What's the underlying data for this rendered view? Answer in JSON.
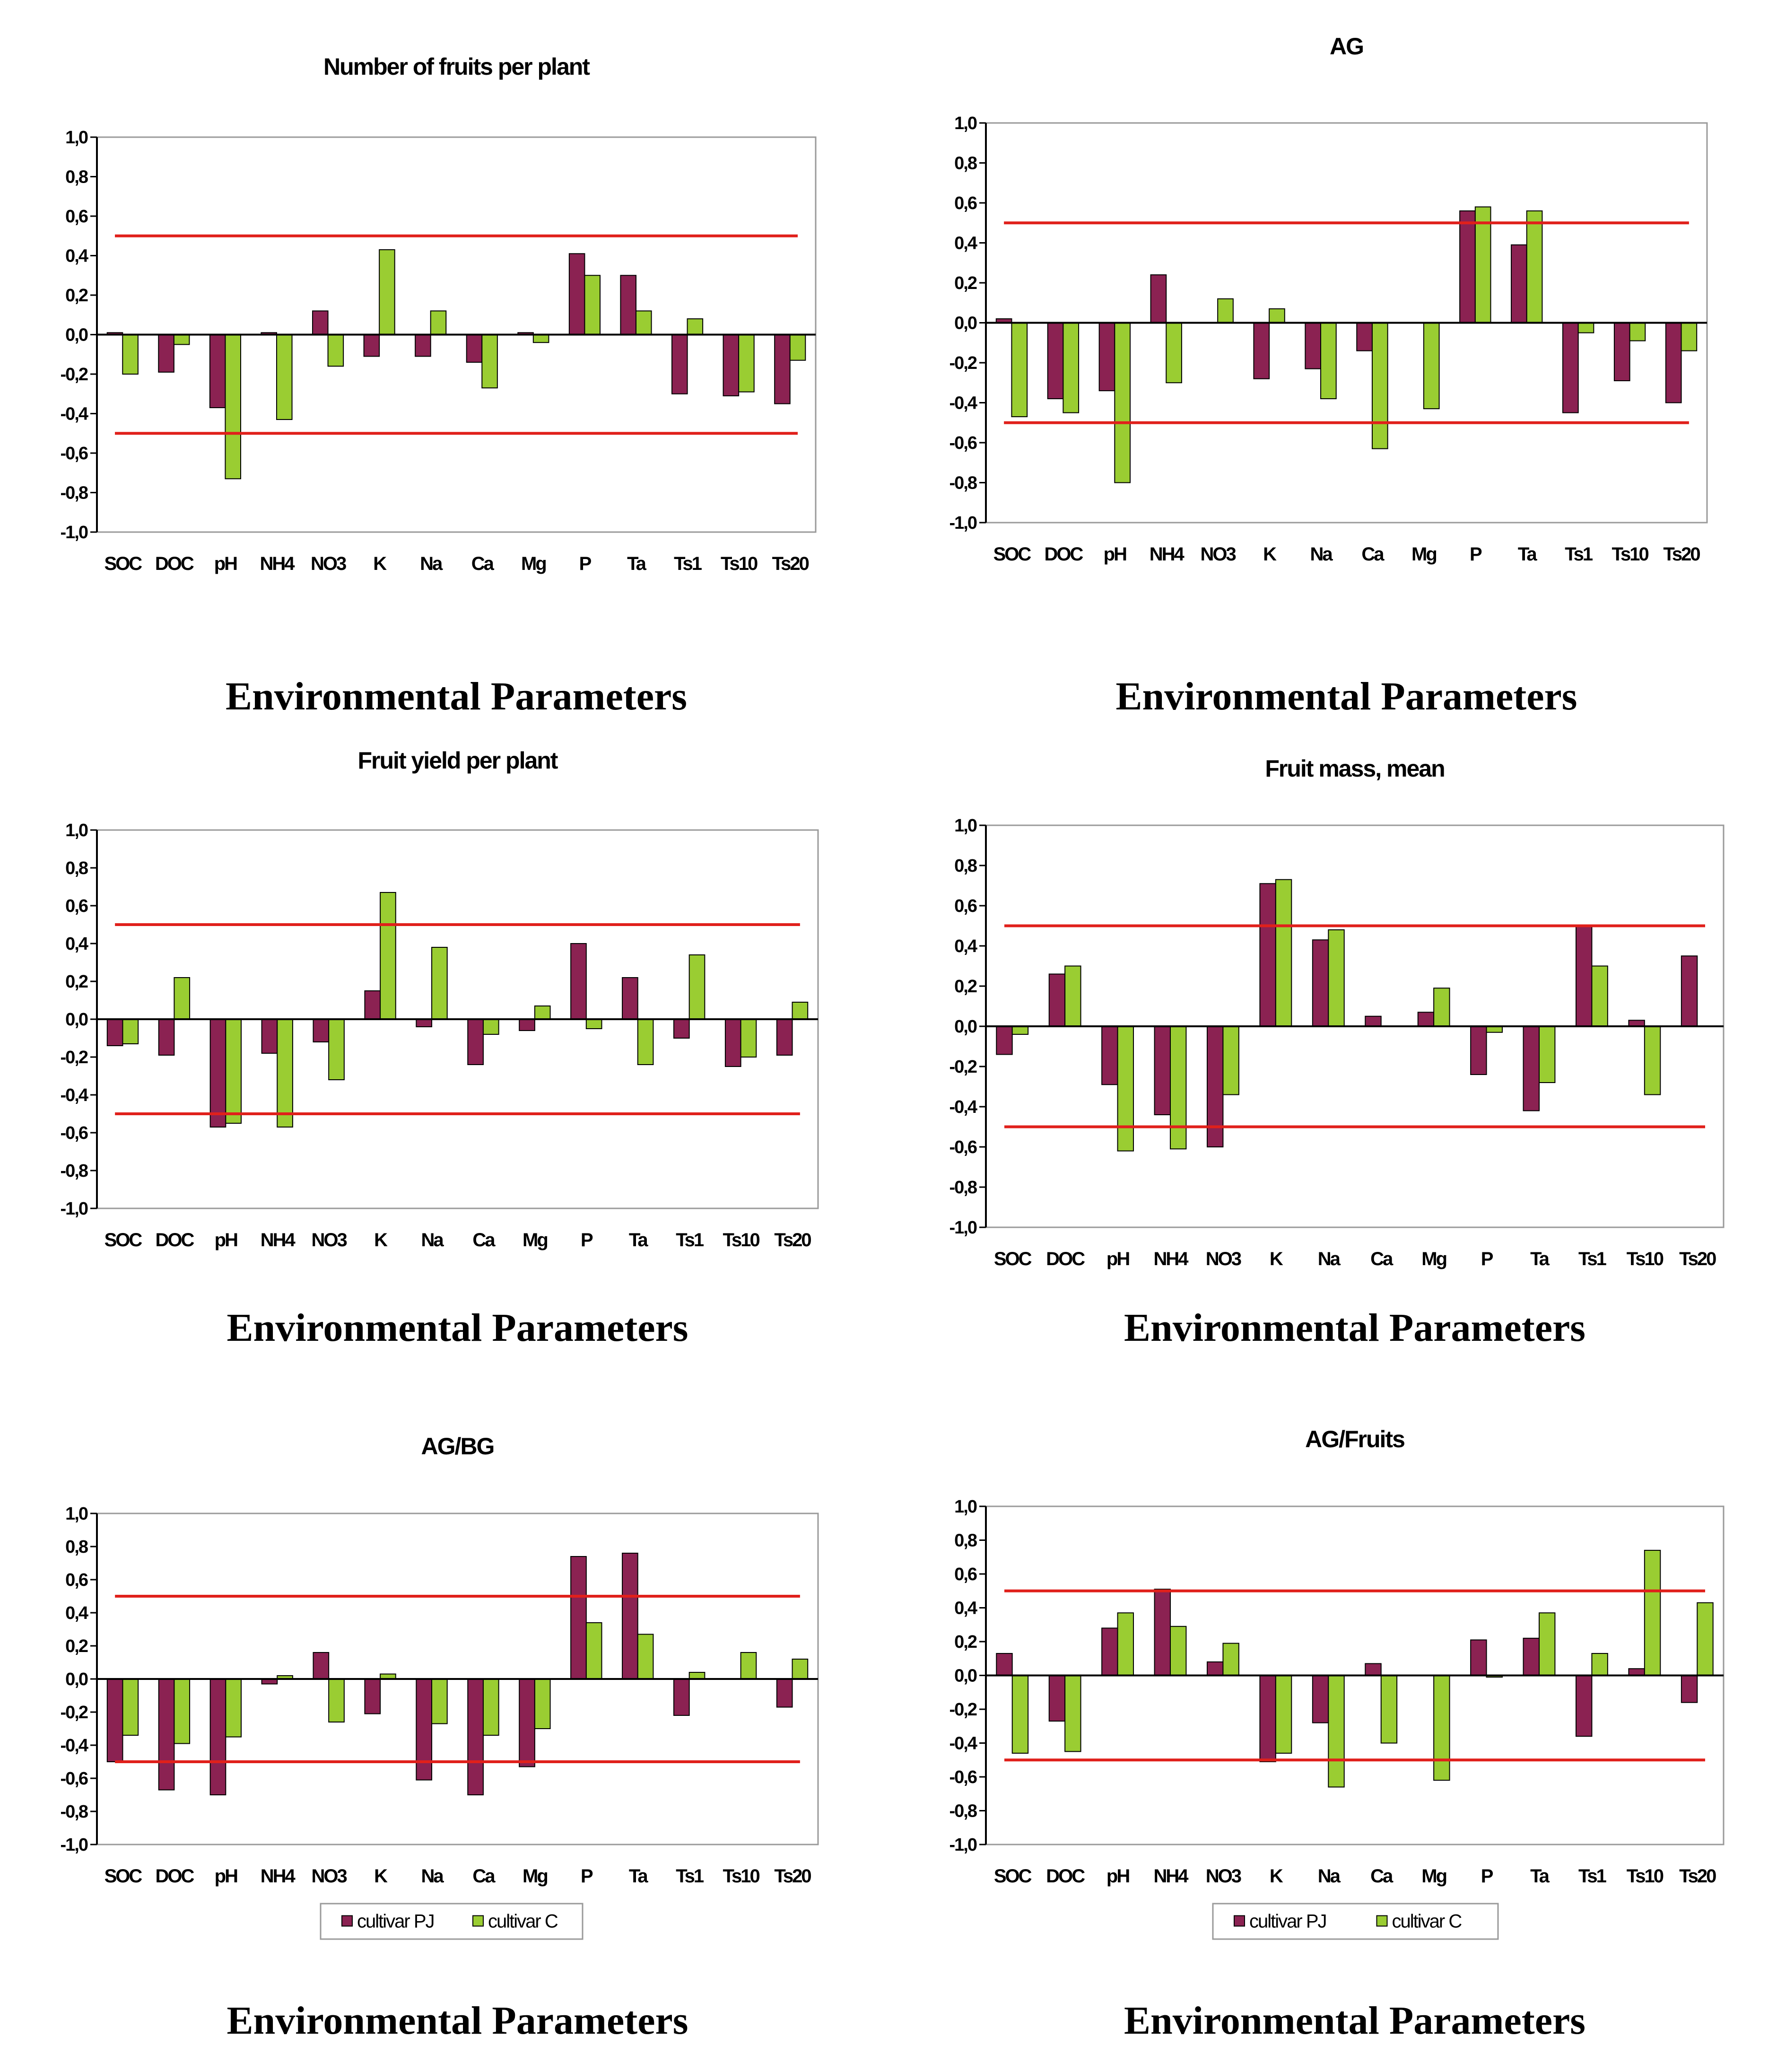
{
  "colors": {
    "cultivar_pj": "#8B2252",
    "cultivar_c": "#9ACD32",
    "threshold": "#E0201B",
    "frame": "#9a9a9a"
  },
  "x_axis_caption": "Environmental Parameters",
  "chart_data": [
    {
      "type": "bar",
      "title": "Number of fruits per plant",
      "xlabel": "Environmental Parameters",
      "ylabel": "",
      "ylim": [
        -1.0,
        1.0
      ],
      "yticks": [
        "1,0",
        "0,8",
        "0,6",
        "0,4",
        "0,2",
        "0,0",
        "-0,2",
        "-0,4",
        "-0,6",
        "-0,8",
        "-1,0"
      ],
      "thresholds": [
        0.5,
        -0.5
      ],
      "categories": [
        "SOC",
        "DOC",
        "pH",
        "NH4",
        "NO3",
        "K",
        "Na",
        "Ca",
        "Mg",
        "P",
        "Ta",
        "Ts1",
        "Ts10",
        "Ts20"
      ],
      "series": [
        {
          "name": "cultivar PJ",
          "values": [
            0.01,
            -0.19,
            -0.37,
            0.01,
            0.12,
            -0.11,
            -0.11,
            -0.14,
            0.01,
            0.41,
            0.3,
            -0.3,
            -0.31,
            -0.35
          ]
        },
        {
          "name": "cultivar C",
          "values": [
            -0.2,
            -0.05,
            -0.73,
            -0.43,
            -0.16,
            0.43,
            0.12,
            -0.27,
            -0.04,
            0.3,
            0.12,
            0.08,
            -0.29,
            -0.13
          ]
        }
      ],
      "legend": null
    },
    {
      "type": "bar",
      "title": "AG",
      "xlabel": "Environmental Parameters",
      "ylabel": "",
      "ylim": [
        -1.0,
        1.0
      ],
      "yticks": [
        "1,0",
        "0,8",
        "0,6",
        "0,4",
        "0,2",
        "0,0",
        "-0,2",
        "-0,4",
        "-0,6",
        "-0,8",
        "-1,0"
      ],
      "thresholds": [
        0.5,
        -0.5
      ],
      "categories": [
        "SOC",
        "DOC",
        "pH",
        "NH4",
        "NO3",
        "K",
        "Na",
        "Ca",
        "Mg",
        "P",
        "Ta",
        "Ts1",
        "Ts10",
        "Ts20"
      ],
      "series": [
        {
          "name": "cultivar PJ",
          "values": [
            0.02,
            -0.38,
            -0.34,
            0.24,
            0.0,
            -0.28,
            -0.23,
            -0.14,
            0.0,
            0.56,
            0.39,
            -0.45,
            -0.29,
            -0.4
          ]
        },
        {
          "name": "cultivar C",
          "values": [
            -0.47,
            -0.45,
            -0.8,
            -0.3,
            0.12,
            0.07,
            -0.38,
            -0.63,
            -0.43,
            0.58,
            0.56,
            -0.05,
            -0.09,
            -0.14
          ]
        }
      ],
      "legend": null
    },
    {
      "type": "bar",
      "title": "Fruit yield per plant",
      "xlabel": "Environmental Parameters",
      "ylabel": "",
      "ylim": [
        -1.0,
        1.0
      ],
      "yticks": [
        "1,0",
        "0,8",
        "0,6",
        "0,4",
        "0,2",
        "0,0",
        "-0,2",
        "-0,4",
        "-0,6",
        "-0,8",
        "-1,0"
      ],
      "thresholds": [
        0.5,
        -0.5
      ],
      "categories": [
        "SOC",
        "DOC",
        "pH",
        "NH4",
        "NO3",
        "K",
        "Na",
        "Ca",
        "Mg",
        "P",
        "Ta",
        "Ts1",
        "Ts10",
        "Ts20"
      ],
      "series": [
        {
          "name": "cultivar PJ",
          "values": [
            -0.14,
            -0.19,
            -0.57,
            -0.18,
            -0.12,
            0.15,
            -0.04,
            -0.24,
            -0.06,
            0.4,
            0.22,
            -0.1,
            -0.25,
            -0.19
          ]
        },
        {
          "name": "cultivar C",
          "values": [
            -0.13,
            0.22,
            -0.55,
            -0.57,
            -0.32,
            0.67,
            0.38,
            -0.08,
            0.07,
            -0.05,
            -0.24,
            0.34,
            -0.2,
            0.09
          ]
        }
      ],
      "legend": null
    },
    {
      "type": "bar",
      "title": "Fruit mass, mean",
      "xlabel": "Environmental Parameters",
      "ylabel": "",
      "ylim": [
        -1.0,
        1.0
      ],
      "yticks": [
        "1,0",
        "0,8",
        "0,6",
        "0,4",
        "0,2",
        "0,0",
        "-0,2",
        "-0,4",
        "-0,6",
        "-0,8",
        "-1,0"
      ],
      "thresholds": [
        0.5,
        -0.5
      ],
      "categories": [
        "SOC",
        "DOC",
        "pH",
        "NH4",
        "NO3",
        "K",
        "Na",
        "Ca",
        "Mg",
        "P",
        "Ta",
        "Ts1",
        "Ts10",
        "Ts20"
      ],
      "series": [
        {
          "name": "cultivar PJ",
          "values": [
            -0.14,
            0.26,
            -0.29,
            -0.44,
            -0.6,
            0.71,
            0.43,
            0.05,
            0.07,
            -0.24,
            -0.42,
            0.5,
            0.03,
            0.35
          ]
        },
        {
          "name": "cultivar C",
          "values": [
            -0.04,
            0.3,
            -0.62,
            -0.61,
            -0.34,
            0.73,
            0.48,
            0.0,
            0.19,
            -0.03,
            -0.28,
            0.3,
            -0.34,
            0.0
          ]
        }
      ],
      "legend": null
    },
    {
      "type": "bar",
      "title": "AG/BG",
      "xlabel": "Environmental Parameters",
      "ylabel": "",
      "ylim": [
        -1.0,
        1.0
      ],
      "yticks": [
        "1,0",
        "0,8",
        "0,6",
        "0,4",
        "0,2",
        "0,0",
        "-0,2",
        "-0,4",
        "-0,6",
        "-0,8",
        "-1,0"
      ],
      "thresholds": [
        0.5,
        -0.5
      ],
      "categories": [
        "SOC",
        "DOC",
        "pH",
        "NH4",
        "NO3",
        "K",
        "Na",
        "Ca",
        "Mg",
        "P",
        "Ta",
        "Ts1",
        "Ts10",
        "Ts20"
      ],
      "series": [
        {
          "name": "cultivar PJ",
          "values": [
            -0.5,
            -0.67,
            -0.7,
            -0.03,
            0.16,
            -0.21,
            -0.61,
            -0.7,
            -0.53,
            0.74,
            0.76,
            -0.22,
            0.0,
            -0.17
          ]
        },
        {
          "name": "cultivar C",
          "values": [
            -0.34,
            -0.39,
            -0.35,
            0.02,
            -0.26,
            0.03,
            -0.27,
            -0.34,
            -0.3,
            0.34,
            0.27,
            0.04,
            0.16,
            0.12
          ]
        }
      ],
      "legend": [
        "cultivar PJ",
        "cultivar C"
      ]
    },
    {
      "type": "bar",
      "title": "AG/Fruits",
      "xlabel": "Environmental Parameters",
      "ylabel": "",
      "ylim": [
        -1.0,
        1.0
      ],
      "yticks": [
        "1,0",
        "0,8",
        "0,6",
        "0,4",
        "0,2",
        "0,0",
        "-0,2",
        "-0,4",
        "-0,6",
        "-0,8",
        "-1,0"
      ],
      "thresholds": [
        0.5,
        -0.5
      ],
      "categories": [
        "SOC",
        "DOC",
        "pH",
        "NH4",
        "NO3",
        "K",
        "Na",
        "Ca",
        "Mg",
        "P",
        "Ta",
        "Ts1",
        "Ts10",
        "Ts20"
      ],
      "series": [
        {
          "name": "cultivar PJ",
          "values": [
            0.13,
            -0.27,
            0.28,
            0.51,
            0.08,
            -0.51,
            -0.28,
            0.07,
            0.0,
            0.21,
            0.22,
            -0.36,
            0.04,
            -0.16
          ]
        },
        {
          "name": "cultivar C",
          "values": [
            -0.46,
            -0.45,
            0.37,
            0.29,
            0.19,
            -0.46,
            -0.66,
            -0.4,
            -0.62,
            -0.01,
            0.37,
            0.13,
            0.74,
            0.43
          ]
        }
      ],
      "legend": [
        "cultivar PJ",
        "cultivar C"
      ]
    }
  ]
}
